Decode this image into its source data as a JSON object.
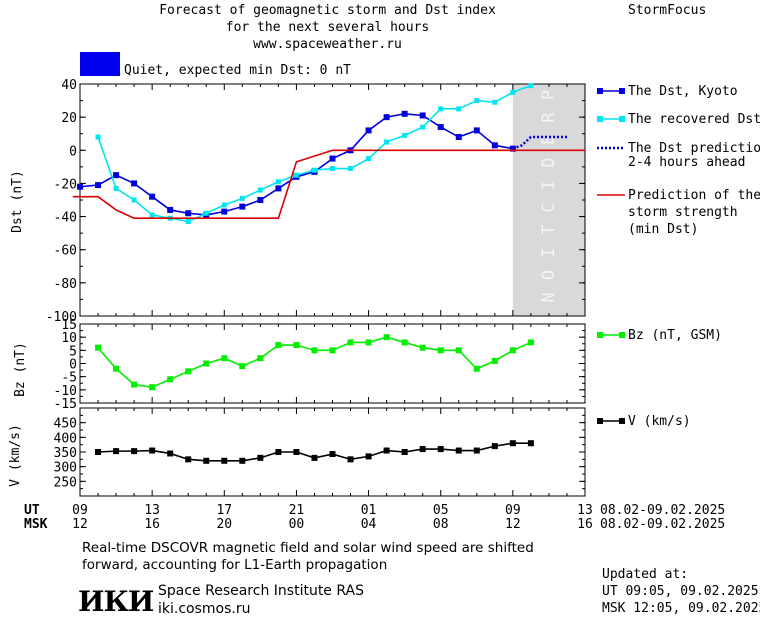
{
  "header": {
    "title_line1": "Forecast of geomagnetic storm and Dst index",
    "title_line2": "for the next several hours",
    "url": "www.spaceweather.ru",
    "brand": "StormFocus",
    "status_text": "Quiet, expected min Dst: 0 nT",
    "status_color": "#0000ee"
  },
  "legend": {
    "dst_kyoto": "The Dst, Kyoto",
    "dst_recovered": "The recovered Dst",
    "dst_prediction_1": "The Dst prediction",
    "dst_prediction_2": "2-4 hours ahead",
    "storm_1": "Prediction of the",
    "storm_2": "storm strength",
    "storm_3": "(min Dst)",
    "bz": "Bz (nT, GSM)",
    "v": "V (km/s)"
  },
  "prediction_label": "PREDICTION",
  "time_axis": {
    "ut_label": "UT",
    "msk_label": "MSK",
    "ut_ticks": [
      "09",
      "13",
      "17",
      "21",
      "01",
      "05",
      "09",
      "13"
    ],
    "msk_ticks": [
      "12",
      "16",
      "20",
      "00",
      "04",
      "08",
      "12",
      "16"
    ],
    "ut_dates": "08.02-09.02.2025",
    "msk_dates": "08.02-09.02.2025"
  },
  "footer": {
    "note_line1": "Real-time DSCOVR magnetic field and solar wind speed are shifted",
    "note_line2": "forward, accounting for L1-Earth propagation",
    "logo": "ИКИ",
    "institute": "Space Research Institute RAS",
    "site": "iki.cosmos.ru",
    "updated_label": "Updated at:",
    "updated_ut": "UT  09:05, 09.02.2025",
    "updated_msk": "MSK 12:05, 09.02.2025"
  },
  "chart_data": [
    {
      "type": "line",
      "ylabel": "Dst (nT)",
      "xlabel": "UT",
      "xlim": [
        9,
        37
      ],
      "ylim": [
        -100,
        40
      ],
      "yticks": [
        40,
        20,
        0,
        -20,
        -40,
        -60,
        -80,
        -100
      ],
      "prediction_window": [
        33,
        37
      ],
      "series": [
        {
          "name": "The Dst, Kyoto",
          "color": "#0000dd",
          "x": [
            9,
            10,
            11,
            12,
            13,
            14,
            15,
            16,
            17,
            18,
            19,
            20,
            21,
            22,
            23,
            24,
            25,
            26,
            27,
            28,
            29,
            30,
            31,
            32,
            33
          ],
          "y": [
            -22,
            -21,
            -15,
            -20,
            -28,
            -36,
            -38,
            -39,
            -37,
            -34,
            -30,
            -23,
            -16,
            -13,
            -5,
            0,
            12,
            20,
            22,
            21,
            14,
            8,
            12,
            3,
            1
          ]
        },
        {
          "name": "The recovered Dst",
          "color": "#00e5ee",
          "x": [
            10,
            11,
            12,
            13,
            14,
            15,
            16,
            17,
            18,
            19,
            20,
            21,
            22,
            23,
            24,
            25,
            26,
            27,
            28,
            29,
            30,
            31,
            32,
            33,
            34
          ],
          "y": [
            8,
            -23,
            -30,
            -39,
            -41,
            -43,
            -38,
            -33,
            -29,
            -24,
            -19,
            -15,
            -12,
            -11,
            -11,
            -5,
            5,
            9,
            14,
            25,
            25,
            30,
            29,
            35,
            39
          ]
        },
        {
          "name": "The Dst prediction",
          "color": "#0000dd",
          "style": "dotted",
          "x": [
            33,
            33.5,
            34,
            35,
            36
          ],
          "y": [
            1,
            3,
            8,
            8,
            8
          ]
        },
        {
          "name": "Prediction of the storm strength (min Dst)",
          "color": "#dd0000",
          "step": true,
          "x": [
            8.6,
            10,
            11,
            12,
            20,
            21,
            23,
            37
          ],
          "y": [
            -28,
            -28,
            -36,
            -41,
            -41,
            -7,
            0,
            0
          ]
        }
      ]
    },
    {
      "type": "line",
      "ylabel": "Bz (nT)",
      "ylim": [
        -15,
        15
      ],
      "yticks": [
        15,
        10,
        5,
        0,
        -5,
        -10,
        -15
      ],
      "series": [
        {
          "name": "Bz (nT, GSM)",
          "color": "#00ee00",
          "x": [
            10,
            11,
            12,
            13,
            14,
            15,
            16,
            17,
            18,
            19,
            20,
            21,
            22,
            23,
            24,
            25,
            26,
            27,
            28,
            29,
            30,
            31,
            32,
            33,
            34
          ],
          "y": [
            6,
            -2,
            -8,
            -9,
            -6,
            -3,
            0,
            2,
            -1,
            2,
            7,
            7,
            5,
            5,
            8,
            8,
            10,
            8,
            6,
            5,
            5,
            -2,
            1,
            5,
            8
          ]
        }
      ]
    },
    {
      "type": "line",
      "ylabel": "V (km/s)",
      "ylim": [
        200,
        500
      ],
      "yticks": [
        450,
        400,
        350,
        300,
        250
      ],
      "series": [
        {
          "name": "V (km/s)",
          "color": "#000000",
          "x": [
            10,
            11,
            12,
            13,
            14,
            15,
            16,
            17,
            18,
            19,
            20,
            21,
            22,
            23,
            24,
            25,
            26,
            27,
            28,
            29,
            30,
            31,
            32,
            33,
            34
          ],
          "y": [
            350,
            353,
            353,
            355,
            345,
            325,
            320,
            320,
            320,
            330,
            350,
            350,
            330,
            343,
            325,
            335,
            355,
            350,
            360,
            360,
            355,
            355,
            370,
            380,
            380
          ]
        }
      ]
    }
  ]
}
